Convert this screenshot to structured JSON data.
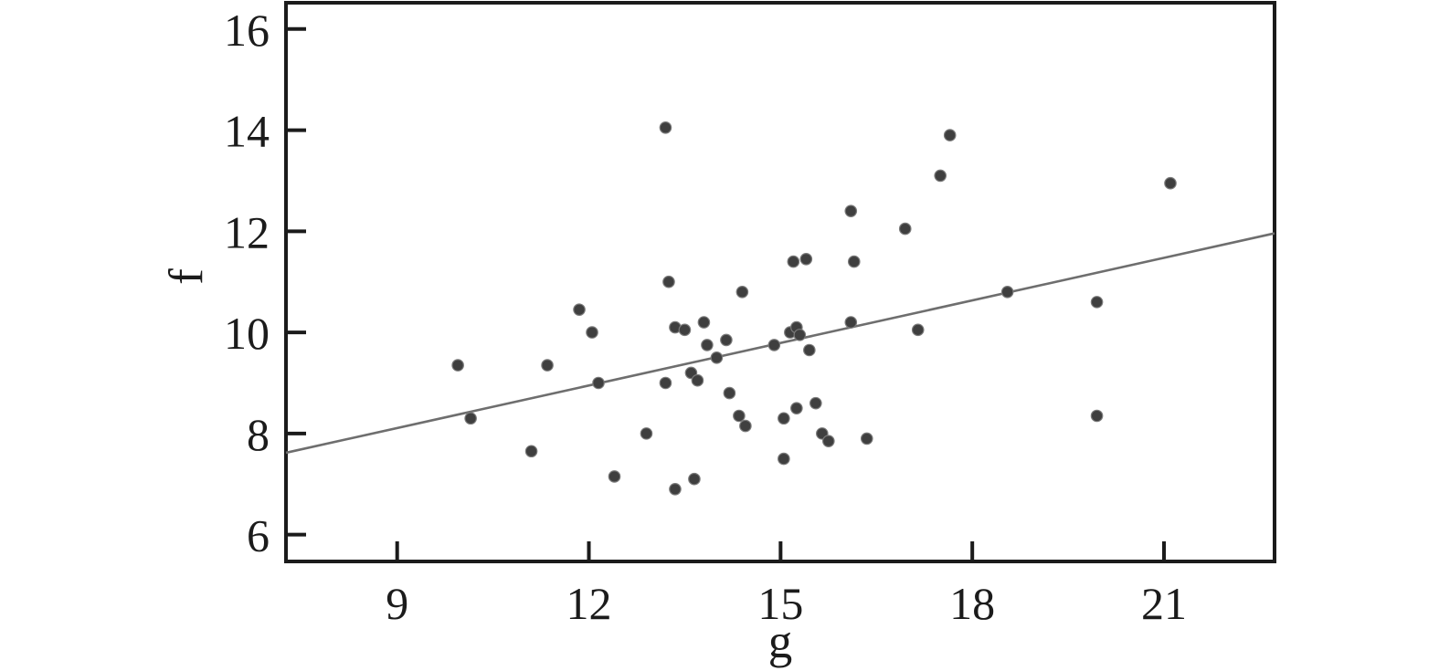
{
  "figure": {
    "background": "#ffffff"
  },
  "chart_data": {
    "type": "scatter",
    "title": "",
    "xlabel": "g",
    "ylabel": "f",
    "xlim": [
      7.26,
      22.73
    ],
    "ylim": [
      5.47,
      16.52
    ],
    "x_ticks": [
      9,
      12,
      15,
      18,
      21
    ],
    "y_ticks": [
      6,
      8,
      10,
      12,
      14,
      16
    ],
    "grid": false,
    "legend": "none",
    "marker": "circle",
    "points": [
      [
        9.95,
        9.35
      ],
      [
        10.15,
        8.3
      ],
      [
        11.1,
        7.65
      ],
      [
        11.35,
        9.35
      ],
      [
        11.85,
        10.45
      ],
      [
        12.05,
        10.0
      ],
      [
        12.15,
        9.0
      ],
      [
        12.4,
        7.15
      ],
      [
        12.9,
        8.0
      ],
      [
        13.2,
        14.05
      ],
      [
        13.2,
        9.0
      ],
      [
        13.25,
        11.0
      ],
      [
        13.35,
        10.1
      ],
      [
        13.35,
        6.9
      ],
      [
        13.5,
        10.05
      ],
      [
        13.6,
        9.2
      ],
      [
        13.65,
        7.1
      ],
      [
        13.7,
        9.05
      ],
      [
        13.8,
        10.2
      ],
      [
        13.85,
        9.75
      ],
      [
        14.0,
        9.5
      ],
      [
        14.15,
        9.85
      ],
      [
        14.2,
        8.8
      ],
      [
        14.35,
        8.35
      ],
      [
        14.45,
        8.15
      ],
      [
        14.4,
        10.8
      ],
      [
        14.9,
        9.75
      ],
      [
        15.15,
        10.0
      ],
      [
        15.25,
        10.1
      ],
      [
        15.3,
        9.95
      ],
      [
        15.45,
        9.65
      ],
      [
        15.05,
        8.3
      ],
      [
        15.25,
        8.5
      ],
      [
        15.55,
        8.6
      ],
      [
        15.05,
        7.5
      ],
      [
        15.65,
        8.0
      ],
      [
        15.75,
        7.85
      ],
      [
        16.35,
        7.9
      ],
      [
        15.2,
        11.4
      ],
      [
        15.4,
        11.45
      ],
      [
        16.1,
        12.4
      ],
      [
        16.15,
        11.4
      ],
      [
        16.1,
        10.2
      ],
      [
        16.95,
        12.05
      ],
      [
        17.15,
        10.05
      ],
      [
        17.5,
        13.1
      ],
      [
        17.65,
        13.9
      ],
      [
        18.55,
        10.8
      ],
      [
        19.95,
        10.6
      ],
      [
        19.95,
        8.35
      ],
      [
        21.1,
        12.95
      ]
    ],
    "trend_line": {
      "x1": 7.26,
      "y1": 7.62,
      "x2": 22.73,
      "y2": 11.96
    },
    "colors": {
      "point": "#3f3f3f",
      "point_edge": "#7a7a7a",
      "trend": "#6e6e6e",
      "axis": "#1b1b1b",
      "label": "#1b1b1b"
    }
  }
}
